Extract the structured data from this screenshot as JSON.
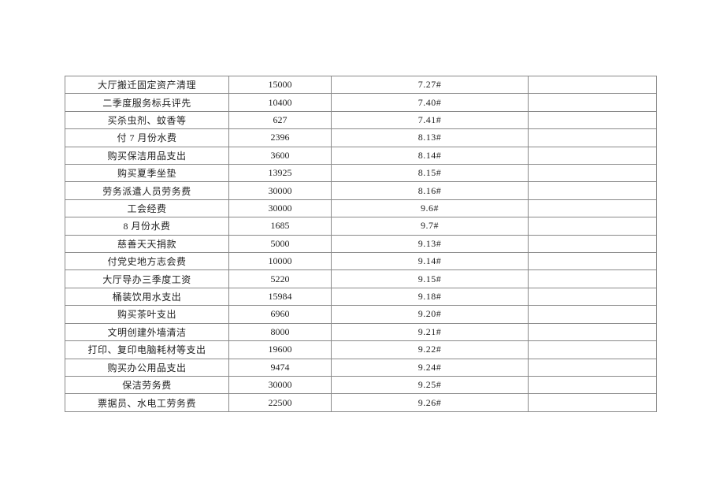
{
  "colors": {
    "page_background": "#ffffff",
    "table_border": "#8a8a8a",
    "text": "#1f1f1f"
  },
  "table": {
    "rows": [
      {
        "item": "大厅搬迁固定资产清理",
        "amount": "15000",
        "date": "7.27#",
        "note": ""
      },
      {
        "item": "二季度服务标兵评先",
        "amount": "10400",
        "date": "7.40#",
        "note": ""
      },
      {
        "item": "买杀虫剂、蚊香等",
        "amount": "627",
        "date": "7.41#",
        "note": ""
      },
      {
        "item": "付 7 月份水费",
        "amount": "2396",
        "date": "8.13#",
        "note": ""
      },
      {
        "item": "购买保洁用品支出",
        "amount": "3600",
        "date": "8.14#",
        "note": ""
      },
      {
        "item": "购买夏季坐垫",
        "amount": "13925",
        "date": "8.15#",
        "note": ""
      },
      {
        "item": "劳务派遣人员劳务费",
        "amount": "30000",
        "date": "8.16#",
        "note": ""
      },
      {
        "item": "工会经费",
        "amount": "30000",
        "date": "9.6#",
        "note": ""
      },
      {
        "item": "8 月份水费",
        "amount": "1685",
        "date": "9.7#",
        "note": ""
      },
      {
        "item": "慈善天天捐款",
        "amount": "5000",
        "date": "9.13#",
        "note": ""
      },
      {
        "item": "付党史地方志会费",
        "amount": "10000",
        "date": "9.14#",
        "note": ""
      },
      {
        "item": "大厅导办三季度工资",
        "amount": "5220",
        "date": "9.15#",
        "note": ""
      },
      {
        "item": "桶装饮用水支出",
        "amount": "15984",
        "date": "9.18#",
        "note": ""
      },
      {
        "item": "购买茶叶支出",
        "amount": "6960",
        "date": "9.20#",
        "note": ""
      },
      {
        "item": "文明创建外墙清洁",
        "amount": "8000",
        "date": "9.21#",
        "note": ""
      },
      {
        "item": "打印、复印电脑耗材等支出",
        "amount": "19600",
        "date": "9.22#",
        "note": ""
      },
      {
        "item": "购买办公用品支出",
        "amount": "9474",
        "date": "9.24#",
        "note": ""
      },
      {
        "item": "保洁劳务费",
        "amount": "30000",
        "date": "9.25#",
        "note": ""
      },
      {
        "item": "票据员、水电工劳务费",
        "amount": "22500",
        "date": "9.26#",
        "note": ""
      }
    ]
  }
}
